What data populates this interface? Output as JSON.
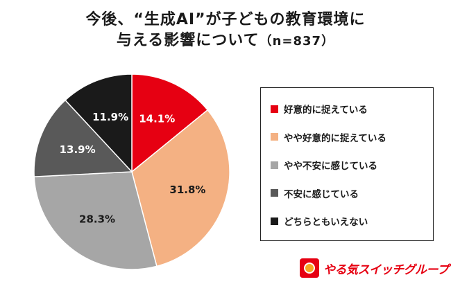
{
  "title": {
    "line1": "今後、“生成AI”が子どもの教育環境に",
    "line2": "与える影響について",
    "n_label": "（n=837）"
  },
  "brand": {
    "logo_text": "やる気スイッチグループ"
  },
  "chart_data": {
    "type": "pie",
    "categories": [
      "好意的に捉えている",
      "やや好意的に捉えている",
      "やや不安に感じている",
      "不安に感じている",
      "どちらともいえない"
    ],
    "values": [
      14.1,
      31.8,
      28.3,
      13.9,
      11.9
    ],
    "labels": [
      "14.1%",
      "31.8%",
      "28.3%",
      "13.9%",
      "11.9%"
    ],
    "colors": [
      "#e60012",
      "#f4b183",
      "#a6a6a6",
      "#595959",
      "#1a1a1a"
    ],
    "label_colors": [
      "#ffffff",
      "#1a1a1a",
      "#1a1a1a",
      "#ffffff",
      "#ffffff"
    ],
    "start": "12 o'clock",
    "direction": "clockwise",
    "legend_position": "right"
  }
}
